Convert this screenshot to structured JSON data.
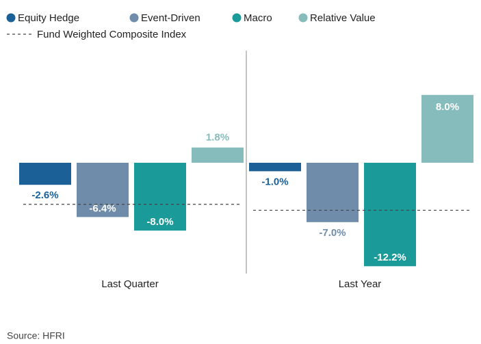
{
  "chart_data": {
    "type": "bar",
    "categories": [
      "Last Quarter",
      "Last Year"
    ],
    "series": [
      {
        "name": "Equity Hedge",
        "color": "#1b6198",
        "values": [
          -2.6,
          -1.0
        ],
        "value_labels": [
          "-2.6%",
          "-1.0%"
        ]
      },
      {
        "name": "Event-Driven",
        "color": "#6f8dab",
        "values": [
          -6.4,
          -7.0
        ],
        "value_labels": [
          "-6.4%",
          "-7.0%"
        ]
      },
      {
        "name": "Macro",
        "color": "#1a9a98",
        "values": [
          -8.0,
          -12.2
        ],
        "value_labels": [
          "-8.0%",
          "-12.2%"
        ]
      },
      {
        "name": "Relative Value",
        "color": "#86bcbc",
        "values": [
          1.8,
          8.0
        ],
        "value_labels": [
          "1.8%",
          "8.0%"
        ]
      }
    ],
    "composite": {
      "name": "Fund Weighted Composite Index",
      "color": "#444444",
      "values": [
        -4.9,
        -5.6
      ]
    },
    "ylim": [
      -14,
      10
    ],
    "source": "Source: HFRI"
  }
}
